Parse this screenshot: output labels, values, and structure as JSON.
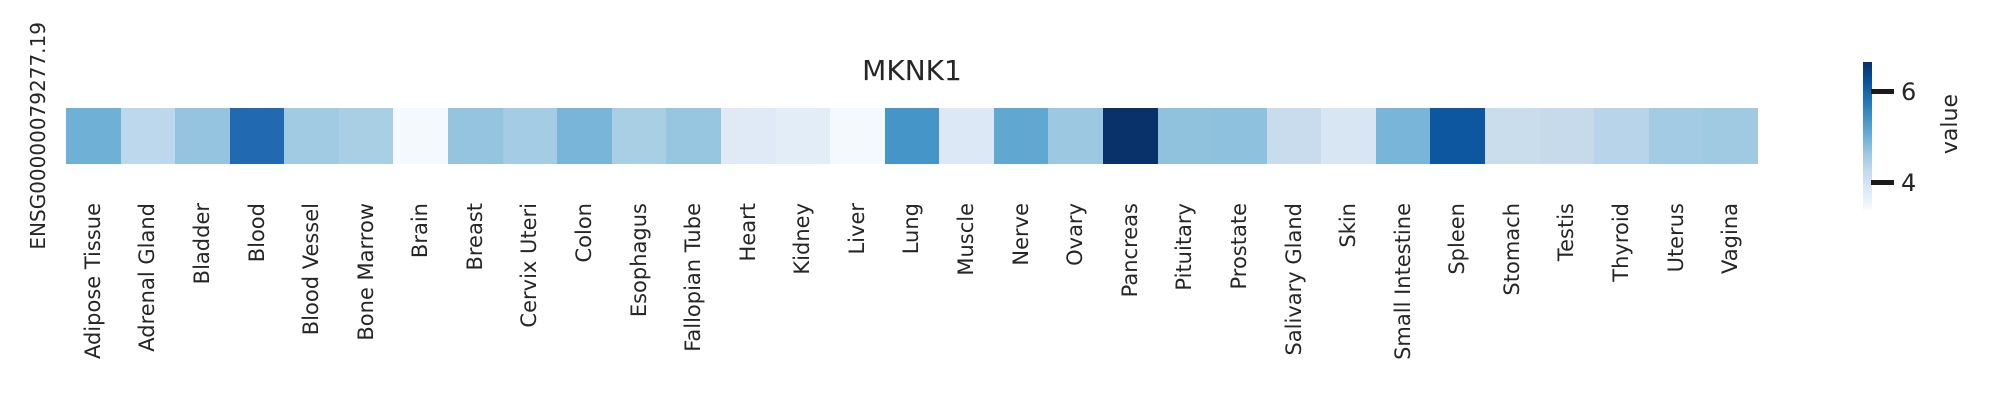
{
  "figure": {
    "title": "MKNK1",
    "row_label": "ENSG00000079277.19",
    "background_color": "#ffffff",
    "text_color": "#262626"
  },
  "colorbar": {
    "label": "value",
    "ticks": [
      6,
      4
    ],
    "tick_color": "#1a1a1a",
    "gradient_stops_top_to_bottom": [
      "#08306b",
      "#08519c",
      "#2171b5",
      "#4292c6",
      "#6baed6",
      "#9ecae1",
      "#c6dbef",
      "#deebf7",
      "#f7fbff"
    ]
  },
  "chart_data": {
    "type": "heatmap",
    "title": "MKNK1",
    "row_label": "ENSG00000079277.19",
    "colormap": "Blues",
    "legend_label": "value",
    "legend_position": "right",
    "value_range": [
      3.4,
      6.65
    ],
    "colorbar_ticks": [
      4,
      6
    ],
    "grid": false,
    "categories": [
      "Adipose Tissue",
      "Adrenal Gland",
      "Bladder",
      "Blood",
      "Blood Vessel",
      "Bone Marrow",
      "Brain",
      "Breast",
      "Cervix Uteri",
      "Colon",
      "Esophagus",
      "Fallopian Tube",
      "Heart",
      "Kidney",
      "Liver",
      "Lung",
      "Muscle",
      "Nerve",
      "Ovary",
      "Pancreas",
      "Pituitary",
      "Prostate",
      "Salivary Gland",
      "Skin",
      "Small Intestine",
      "Spleen",
      "Stomach",
      "Testis",
      "Thyroid",
      "Uterus",
      "Vagina"
    ],
    "series": [
      {
        "name": "ENSG00000079277.19",
        "values": [
          5.0,
          4.3,
          4.7,
          5.85,
          4.6,
          4.5,
          3.45,
          4.7,
          4.55,
          4.9,
          4.5,
          4.68,
          3.85,
          3.8,
          3.45,
          5.4,
          3.9,
          5.1,
          4.62,
          6.65,
          4.72,
          4.73,
          4.2,
          3.95,
          4.9,
          6.2,
          4.18,
          4.22,
          4.35,
          4.58,
          4.6
        ],
        "cell_colors": [
          "#6fb0d7",
          "#bdd7ec",
          "#94c4df",
          "#2169b0",
          "#a0cbe3",
          "#a9cfe5",
          "#f4f9fe",
          "#94c4df",
          "#a4cce4",
          "#79b5d9",
          "#a9cfe5",
          "#97c6e0",
          "#dfeaf6",
          "#e3edf8",
          "#f4f9fe",
          "#4695c8",
          "#dce8f5",
          "#60a7d2",
          "#9cc8e1",
          "#09326b",
          "#90c2dd",
          "#8ec1dd",
          "#c9dcee",
          "#d8e6f3",
          "#79b5d9",
          "#0d57a1",
          "#cadded",
          "#c7daec",
          "#b7d4ea",
          "#a3cbe3",
          "#a0c9e2"
        ]
      }
    ]
  }
}
